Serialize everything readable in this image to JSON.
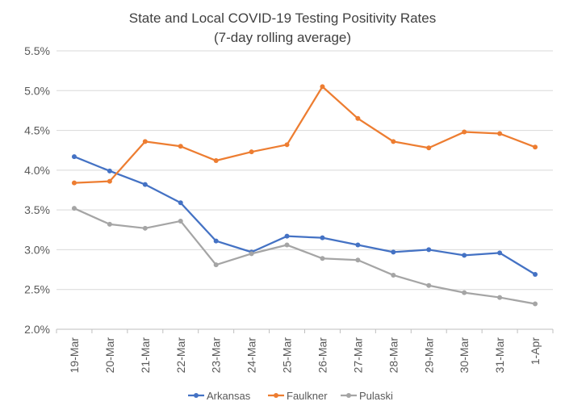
{
  "chart_data": {
    "type": "line",
    "title_lines": [
      "State and Local COVID-19 Testing Positivity Rates",
      "(7-day rolling average)"
    ],
    "xlabel": "",
    "ylabel": "",
    "categories": [
      "19-Mar",
      "20-Mar",
      "21-Mar",
      "22-Mar",
      "23-Mar",
      "24-Mar",
      "25-Mar",
      "26-Mar",
      "27-Mar",
      "28-Mar",
      "29-Mar",
      "30-Mar",
      "31-Mar",
      "1-Apr"
    ],
    "ylim": [
      0.02,
      0.055
    ],
    "yticks": [
      0.02,
      0.025,
      0.03,
      0.035,
      0.04,
      0.045,
      0.05,
      0.055
    ],
    "ytick_labels": [
      "2.0%",
      "2.5%",
      "3.0%",
      "3.5%",
      "4.0%",
      "4.5%",
      "5.0%",
      "5.5%"
    ],
    "grid": true,
    "legend_position": "bottom",
    "series": [
      {
        "name": "Arkansas",
        "color": "#4472C4",
        "values": [
          0.0417,
          0.0399,
          0.0382,
          0.0359,
          0.0311,
          0.0297,
          0.0317,
          0.0315,
          0.0306,
          0.0297,
          0.03,
          0.0293,
          0.0296,
          0.0269
        ]
      },
      {
        "name": "Faulkner",
        "color": "#ED7D31",
        "values": [
          0.0384,
          0.0386,
          0.0436,
          0.043,
          0.0412,
          0.0423,
          0.0432,
          0.0505,
          0.0465,
          0.0436,
          0.0428,
          0.0448,
          0.0446,
          0.0429
        ]
      },
      {
        "name": "Pulaski",
        "color": "#A5A5A5",
        "values": [
          0.0352,
          0.0332,
          0.0327,
          0.0336,
          0.0281,
          0.0295,
          0.0306,
          0.0289,
          0.0287,
          0.0268,
          0.0255,
          0.0246,
          0.024,
          0.0232
        ]
      }
    ]
  }
}
